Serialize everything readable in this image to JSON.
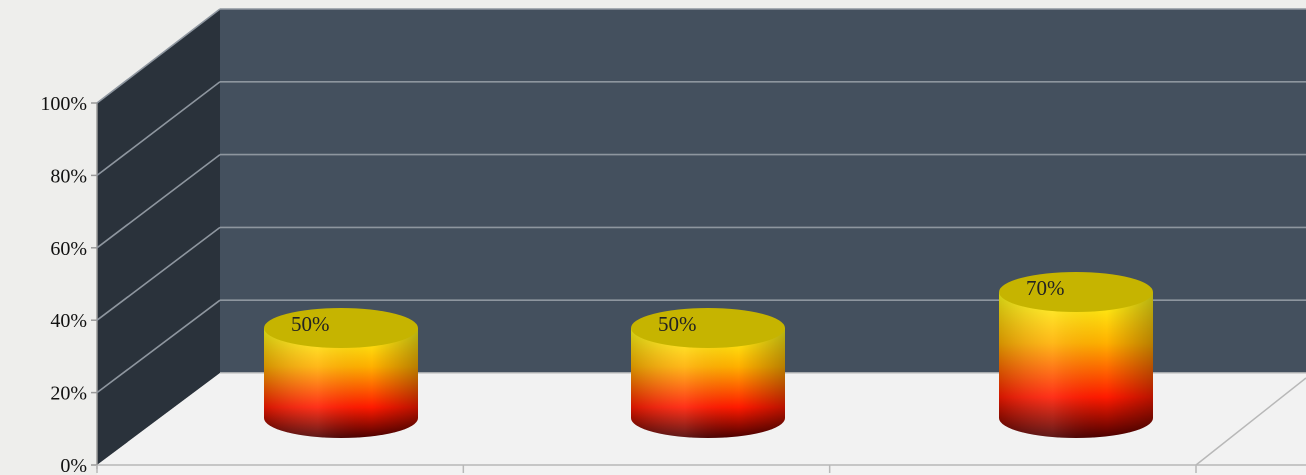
{
  "chart_data": {
    "type": "bar",
    "style": "3d-cylinder",
    "categories": [
      "",
      "",
      ""
    ],
    "values": [
      50,
      50,
      70
    ],
    "data_labels": [
      "50%",
      "50%",
      "70%"
    ],
    "y_ticks": [
      "0%",
      "20%",
      "40%",
      "60%",
      "80%",
      "100%"
    ],
    "ylim": [
      0,
      100
    ],
    "title": "",
    "xlabel": "",
    "ylabel": "",
    "grid": true,
    "legend": "none",
    "colors": {
      "bar_top": "#c6b400",
      "bar_gradient": [
        "#ffff1a",
        "#ffb000",
        "#ff1a00",
        "#4a0000"
      ],
      "back_wall": "#44505e",
      "side_wall": "#2a323b",
      "floor": "#f2f2f2",
      "gridline": "#8e969f",
      "page_background": "#eeeeec"
    }
  }
}
